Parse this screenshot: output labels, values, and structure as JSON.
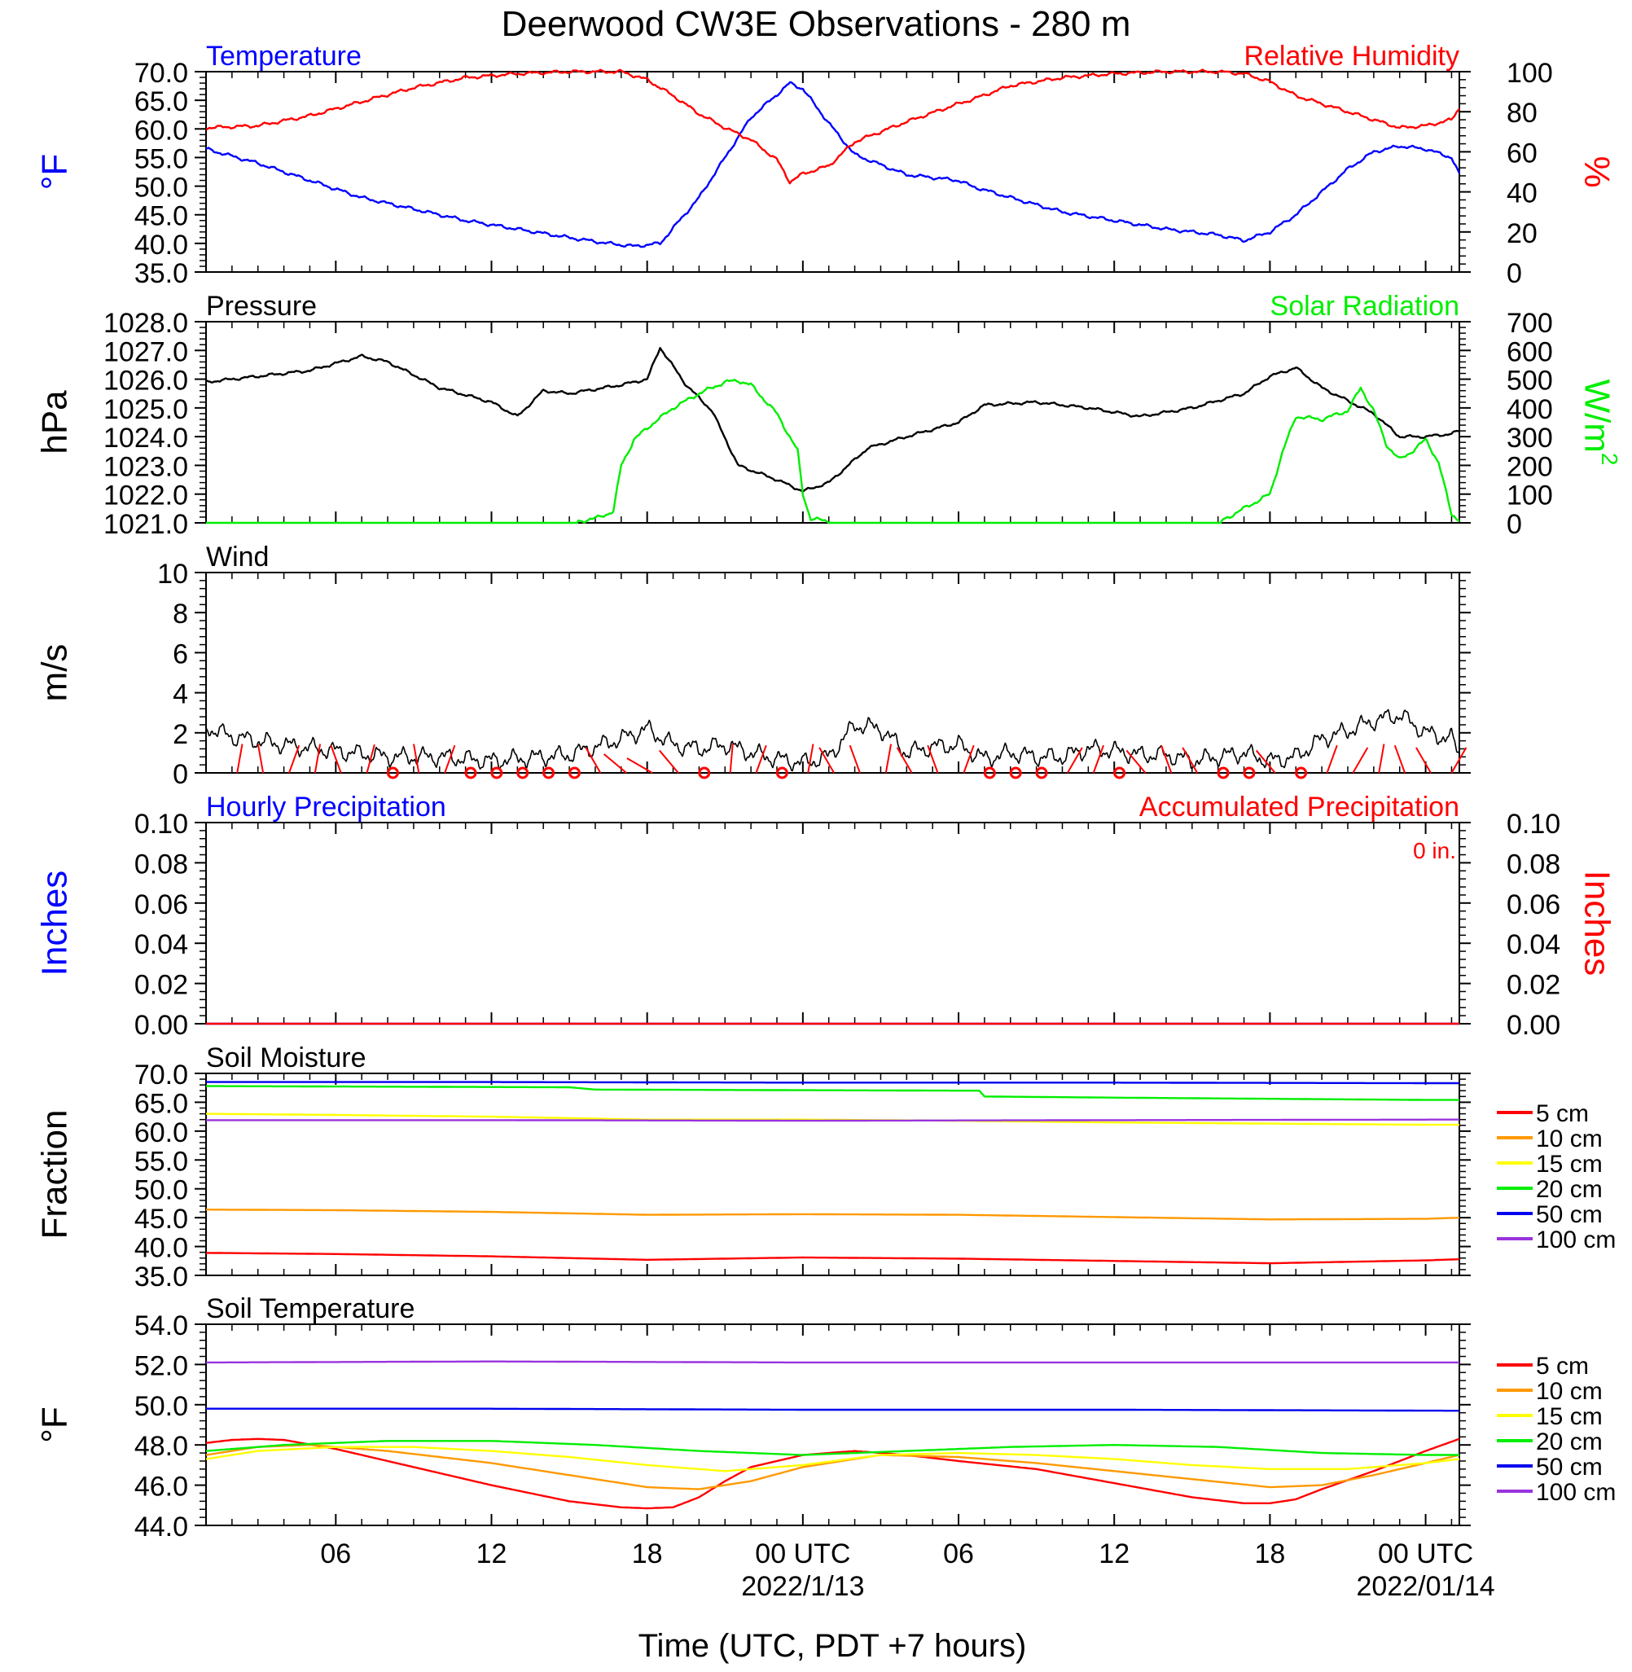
{
  "title": "Deerwood CW3E Observations - 280 m",
  "xlabel": "Time (UTC, PDT +7 hours)",
  "x_ticks": [
    {
      "h": 6,
      "label": "06"
    },
    {
      "h": 12,
      "label": "12"
    },
    {
      "h": 18,
      "label": "18"
    },
    {
      "h": 24,
      "label": "00 UTC",
      "date": "2022/1/13"
    },
    {
      "h": 30,
      "label": "06"
    },
    {
      "h": 36,
      "label": "12"
    },
    {
      "h": 42,
      "label": "18"
    },
    {
      "h": 48,
      "label": "00 UTC",
      "date": "2022/01/14"
    }
  ],
  "colors": {
    "temperature": "#0000ff",
    "humidity": "#ff0000",
    "pressure": "#000000",
    "solar": "#00ee00",
    "wind": "#000000",
    "barb": "#ff0000",
    "hourly_precip": "#0000ff",
    "accum_precip": "#ff0000"
  },
  "legend": {
    "labels": [
      "5 cm",
      "10 cm",
      "15 cm",
      "20 cm",
      "50 cm",
      "100 cm"
    ],
    "colors": [
      "#ff0000",
      "#ff9900",
      "#ffff00",
      "#00ee00",
      "#0000ee",
      "#9933dd"
    ]
  },
  "chart_data": [
    {
      "type": "line",
      "title_left": "Temperature",
      "title_right": "Relative Humidity",
      "ylabel_left": "°F",
      "ylabel_right": "%",
      "x_range": [
        1,
        49.3
      ],
      "ylim_left": [
        35,
        70
      ],
      "ylim_right": [
        0,
        100
      ],
      "yticks_left": [
        "35.0",
        "40.0",
        "45.0",
        "50.0",
        "55.0",
        "60.0",
        "65.0",
        "70.0"
      ],
      "yticks_right": [
        "0",
        "20",
        "40",
        "60",
        "80",
        "100"
      ],
      "series": [
        {
          "axis": "left",
          "x": [
            1,
            3,
            5,
            7,
            9,
            11,
            13,
            15,
            16.5,
            17.5,
            18.5,
            20,
            21,
            22,
            23.5,
            24,
            25,
            26,
            28,
            30,
            30.5,
            32,
            34,
            36,
            38,
            40,
            41,
            42,
            43,
            44,
            45,
            46,
            47,
            48,
            49,
            49.3
          ],
          "y": [
            56.5,
            54,
            51,
            48,
            46,
            44,
            42.5,
            41,
            40,
            39.5,
            40,
            48,
            55,
            62,
            68,
            67,
            61,
            55.5,
            52,
            51,
            50,
            48,
            45.5,
            44,
            42.5,
            41.5,
            40.5,
            42,
            45,
            49,
            53,
            56,
            57,
            56.5,
            55,
            52
          ]
        },
        {
          "axis": "right",
          "x": [
            1,
            3,
            5,
            7,
            9,
            11,
            13,
            15,
            17,
            18,
            19,
            20,
            21,
            22,
            23,
            23.5,
            24,
            25,
            26,
            28,
            30,
            30.5,
            32,
            34,
            36,
            38,
            40,
            41,
            42,
            43,
            44,
            45,
            46,
            47,
            48,
            49,
            49.3
          ],
          "y": [
            72,
            73,
            78,
            85,
            92,
            97,
            99,
            100,
            100,
            96,
            88,
            79,
            72,
            66,
            56,
            45,
            49,
            53,
            65,
            75,
            84,
            86,
            93,
            97,
            99,
            100,
            100,
            99,
            95,
            88,
            84,
            80,
            76,
            72,
            73,
            76,
            82
          ]
        }
      ]
    },
    {
      "type": "line",
      "title_left": "Pressure",
      "title_right": "Solar Radiation",
      "ylabel_left": "hPa",
      "ylabel_right": "W/m",
      "ylabel_right_sup": "2",
      "x_range": [
        1,
        49.3
      ],
      "ylim_left": [
        1021,
        1028
      ],
      "ylim_right": [
        0,
        700
      ],
      "yticks_left": [
        "1021.0",
        "1022.0",
        "1023.0",
        "1024.0",
        "1025.0",
        "1026.0",
        "1027.0",
        "1028.0"
      ],
      "yticks_right": [
        "0",
        "100",
        "200",
        "300",
        "400",
        "500",
        "600",
        "700"
      ],
      "series": [
        {
          "axis": "left",
          "x": [
            1,
            3,
            5,
            7,
            8,
            10,
            12,
            13,
            14,
            15,
            17,
            18,
            18.5,
            19.5,
            20.5,
            21.5,
            23,
            24,
            25,
            26.5,
            28,
            30,
            31,
            33,
            35,
            37,
            39,
            41,
            42,
            43,
            44,
            46,
            47,
            48,
            49,
            49.3
          ],
          "y": [
            1025.9,
            1026.1,
            1026.3,
            1026.8,
            1026.6,
            1025.7,
            1025.2,
            1024.7,
            1025.6,
            1025.5,
            1025.8,
            1026.0,
            1027.1,
            1025.8,
            1024.9,
            1023.0,
            1022.5,
            1022.1,
            1022.4,
            1023.6,
            1024.0,
            1024.5,
            1025.1,
            1025.2,
            1025.0,
            1024.7,
            1025.0,
            1025.5,
            1026.1,
            1026.4,
            1025.7,
            1024.8,
            1024.0,
            1024.0,
            1024.1,
            1024.2
          ]
        },
        {
          "axis": "right",
          "x": [
            1,
            15,
            16,
            16.7,
            17,
            17.5,
            18,
            19,
            20,
            21,
            21.5,
            22,
            23,
            23.8,
            24,
            24.3,
            25,
            26,
            40,
            41,
            42,
            42.5,
            43,
            44,
            45,
            45.5,
            46,
            46.5,
            47,
            47.5,
            48,
            48.5,
            49,
            49.3
          ],
          "y": [
            0,
            0,
            15,
            40,
            200,
            290,
            330,
            400,
            450,
            490,
            495,
            480,
            380,
            250,
            100,
            15,
            5,
            0,
            0,
            50,
            100,
            250,
            370,
            360,
            390,
            470,
            390,
            270,
            220,
            250,
            290,
            210,
            30,
            10
          ]
        }
      ]
    },
    {
      "type": "line",
      "title_left": "Wind",
      "ylabel_left": "m/s",
      "x_range": [
        1,
        49.3
      ],
      "ylim_left": [
        0,
        10
      ],
      "yticks_left": [
        "0",
        "2",
        "4",
        "6",
        "8",
        "10"
      ],
      "series": [
        {
          "axis": "left",
          "x": [
            1,
            2,
            4,
            6,
            8,
            10,
            12,
            14,
            15,
            16,
            17,
            18,
            19,
            20,
            21,
            22,
            23,
            24,
            25,
            26,
            27,
            28,
            29,
            30,
            31,
            32,
            33,
            34,
            35,
            36,
            37,
            38,
            39,
            40,
            41,
            42,
            43,
            44,
            45,
            46,
            47,
            48,
            49,
            49.3
          ],
          "y": [
            2.3,
            1.8,
            1.4,
            1.1,
            0.8,
            0.8,
            0.6,
            0.8,
            0.9,
            1.3,
            1.7,
            2.2,
            1.4,
            1.2,
            1.4,
            1.0,
            0.7,
            0.5,
            0.8,
            2.4,
            2.2,
            1.0,
            1.3,
            1.4,
            0.7,
            1.0,
            0.8,
            0.8,
            1.2,
            1.1,
            0.9,
            0.9,
            0.6,
            0.8,
            1.0,
            0.6,
            0.8,
            1.7,
            2.1,
            2.6,
            2.9,
            2.0,
            1.7,
            1.0
          ]
        }
      ]
    },
    {
      "type": "line",
      "title_left": "Hourly Precipitation",
      "title_right": "Accumulated Precipitation",
      "annotation": "0 in.",
      "ylabel_left": "Inches",
      "ylabel_right": "Inches",
      "x_range": [
        1,
        49.3
      ],
      "ylim_left": [
        0,
        0.1
      ],
      "ylim_right": [
        0,
        0.1
      ],
      "yticks_left": [
        "0.00",
        "0.02",
        "0.04",
        "0.06",
        "0.08",
        "0.10"
      ],
      "yticks_right": [
        "0.00",
        "0.02",
        "0.04",
        "0.06",
        "0.08",
        "0.10"
      ],
      "series": [
        {
          "axis": "left",
          "x": [
            1,
            49.3
          ],
          "y": [
            0,
            0
          ]
        },
        {
          "axis": "right",
          "x": [
            1,
            49.3
          ],
          "y": [
            0,
            0
          ]
        }
      ]
    },
    {
      "type": "line",
      "title_left": "Soil Moisture",
      "ylabel_left": "Fraction",
      "x_range": [
        1,
        49.3
      ],
      "ylim_left": [
        35,
        70
      ],
      "yticks_left": [
        "35.0",
        "40.0",
        "45.0",
        "50.0",
        "55.0",
        "60.0",
        "65.0",
        "70.0"
      ],
      "series": [
        {
          "legend_index": 0,
          "x": [
            1,
            6,
            12,
            18,
            24,
            30,
            36,
            42,
            48,
            49.3
          ],
          "y": [
            38.9,
            38.7,
            38.3,
            37.7,
            38.1,
            37.9,
            37.5,
            37.1,
            37.6,
            37.8
          ]
        },
        {
          "legend_index": 1,
          "x": [
            1,
            6,
            12,
            18,
            24,
            30,
            36,
            42,
            48,
            49.3
          ],
          "y": [
            46.4,
            46.3,
            46.0,
            45.5,
            45.6,
            45.5,
            45.1,
            44.7,
            44.8,
            45.0
          ]
        },
        {
          "legend_index": 2,
          "x": [
            1,
            6,
            12,
            18,
            24,
            30,
            36,
            42,
            48,
            49.3
          ],
          "y": [
            63.0,
            62.8,
            62.5,
            62.0,
            62.0,
            61.8,
            61.5,
            61.3,
            61.1,
            61.1
          ]
        },
        {
          "legend_index": 3,
          "x": [
            1,
            15,
            16,
            30.8,
            31,
            36,
            42,
            48,
            49.3
          ],
          "y": [
            67.8,
            67.6,
            67.2,
            67.0,
            66.0,
            65.8,
            65.6,
            65.4,
            65.4
          ]
        },
        {
          "legend_index": 4,
          "x": [
            1,
            12,
            24,
            36,
            49.3
          ],
          "y": [
            68.5,
            68.5,
            68.4,
            68.4,
            68.3
          ]
        },
        {
          "legend_index": 5,
          "x": [
            1,
            12,
            24,
            36,
            49.3
          ],
          "y": [
            61.9,
            61.9,
            61.8,
            61.9,
            62.0
          ]
        }
      ]
    },
    {
      "type": "line",
      "title_left": "Soil Temperature",
      "ylabel_left": "°F",
      "x_range": [
        1,
        49.3
      ],
      "ylim_left": [
        44,
        54
      ],
      "yticks_left": [
        "44.0",
        "46.0",
        "48.0",
        "50.0",
        "52.0",
        "54.0"
      ],
      "series": [
        {
          "legend_index": 0,
          "x": [
            1,
            2,
            3,
            4,
            6,
            9,
            12,
            15,
            17,
            18,
            19,
            20,
            21,
            22,
            24,
            26,
            28,
            30,
            33,
            36,
            39,
            41,
            42,
            43,
            44,
            46,
            48,
            49.3
          ],
          "y": [
            48.1,
            48.25,
            48.3,
            48.25,
            47.8,
            46.9,
            46.0,
            45.2,
            44.9,
            44.85,
            44.9,
            45.4,
            46.2,
            46.9,
            47.5,
            47.7,
            47.5,
            47.2,
            46.8,
            46.1,
            45.4,
            45.1,
            45.1,
            45.3,
            45.8,
            46.7,
            47.7,
            48.3
          ]
        },
        {
          "legend_index": 1,
          "x": [
            1,
            3,
            5,
            8,
            12,
            16,
            18,
            20,
            22,
            24,
            27,
            30,
            33,
            36,
            39,
            42,
            44,
            46,
            48,
            49.3
          ],
          "y": [
            47.5,
            47.9,
            48.0,
            47.7,
            47.1,
            46.3,
            45.9,
            45.8,
            46.2,
            46.9,
            47.5,
            47.4,
            47.1,
            46.7,
            46.3,
            45.9,
            46.0,
            46.5,
            47.1,
            47.5
          ]
        },
        {
          "legend_index": 2,
          "x": [
            1,
            3,
            6,
            9,
            12,
            15,
            18,
            21,
            24,
            27,
            30,
            33,
            36,
            39,
            42,
            45,
            48,
            49.3
          ],
          "y": [
            47.3,
            47.7,
            47.9,
            47.9,
            47.7,
            47.4,
            47.0,
            46.7,
            47.0,
            47.5,
            47.6,
            47.5,
            47.3,
            47.0,
            46.8,
            46.8,
            47.1,
            47.3
          ]
        },
        {
          "legend_index": 3,
          "x": [
            1,
            4,
            8,
            12,
            16,
            20,
            24,
            28,
            32,
            36,
            40,
            44,
            48,
            49.3
          ],
          "y": [
            47.7,
            48.0,
            48.2,
            48.2,
            48.0,
            47.7,
            47.5,
            47.7,
            47.9,
            48.0,
            47.9,
            47.6,
            47.5,
            47.5
          ]
        },
        {
          "legend_index": 4,
          "x": [
            1,
            12,
            24,
            36,
            49.3
          ],
          "y": [
            49.8,
            49.8,
            49.75,
            49.75,
            49.7
          ]
        },
        {
          "legend_index": 5,
          "x": [
            1,
            12,
            24,
            36,
            49.3
          ],
          "y": [
            52.1,
            52.15,
            52.1,
            52.1,
            52.1
          ]
        }
      ]
    }
  ],
  "wind_barbs": [
    {
      "h": 2.2,
      "dir": 10
    },
    {
      "h": 3.2,
      "dir": 350
    },
    {
      "h": 4.2,
      "dir": 20
    },
    {
      "h": 5.2,
      "dir": 10
    },
    {
      "h": 6.2,
      "dir": 340
    },
    {
      "h": 7.2,
      "dir": 15
    },
    {
      "h": 8.2,
      "dir": 0,
      "calm": true
    },
    {
      "h": 9.2,
      "dir": 350
    },
    {
      "h": 10.2,
      "dir": 20
    },
    {
      "h": 11.2,
      "dir": 0,
      "calm": true
    },
    {
      "h": 12.2,
      "dir": 0,
      "calm": true
    },
    {
      "h": 13.2,
      "dir": 0,
      "calm": true
    },
    {
      "h": 14.2,
      "dir": 0,
      "calm": true
    },
    {
      "h": 15.2,
      "dir": 0,
      "calm": true
    },
    {
      "h": 16.2,
      "dir": 330
    },
    {
      "h": 17.2,
      "dir": 310
    },
    {
      "h": 18.2,
      "dir": 300
    },
    {
      "h": 19.2,
      "dir": 320
    },
    {
      "h": 20.2,
      "dir": 0,
      "calm": true
    },
    {
      "h": 21.2,
      "dir": 5
    },
    {
      "h": 22.2,
      "dir": 20
    },
    {
      "h": 23.2,
      "dir": 0,
      "calm": true
    },
    {
      "h": 24.2,
      "dir": 10
    },
    {
      "h": 25.2,
      "dir": 330
    },
    {
      "h": 26.2,
      "dir": 340
    },
    {
      "h": 27.2,
      "dir": 10
    },
    {
      "h": 28.2,
      "dir": 330
    },
    {
      "h": 29.2,
      "dir": 340
    },
    {
      "h": 30.2,
      "dir": 20
    },
    {
      "h": 31.2,
      "dir": 0,
      "calm": true
    },
    {
      "h": 32.2,
      "dir": 0,
      "calm": true
    },
    {
      "h": 33.2,
      "dir": 0,
      "calm": true
    },
    {
      "h": 34.2,
      "dir": 30
    },
    {
      "h": 35.2,
      "dir": 20
    },
    {
      "h": 36.2,
      "dir": 0,
      "calm": true
    },
    {
      "h": 37.2,
      "dir": 320
    },
    {
      "h": 38.2,
      "dir": 340
    },
    {
      "h": 39.2,
      "dir": 330
    },
    {
      "h": 40.2,
      "dir": 0,
      "calm": true
    },
    {
      "h": 41.2,
      "dir": 0,
      "calm": true
    },
    {
      "h": 42.2,
      "dir": 320
    },
    {
      "h": 43.2,
      "dir": 0,
      "calm": true
    },
    {
      "h": 44.2,
      "dir": 20
    },
    {
      "h": 45.2,
      "dir": 30
    },
    {
      "h": 46.2,
      "dir": 10
    },
    {
      "h": 47.2,
      "dir": 340
    },
    {
      "h": 48.2,
      "dir": 330
    },
    {
      "h": 49.0,
      "dir": 30
    }
  ]
}
